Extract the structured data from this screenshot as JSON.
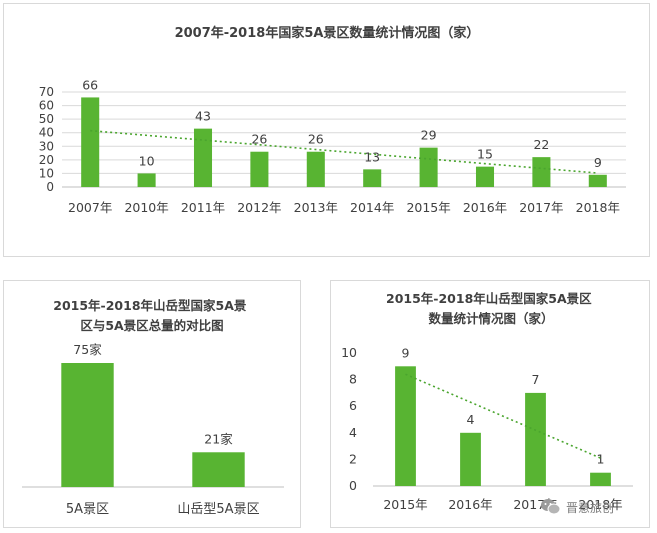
{
  "colors": {
    "bar": "#58b432",
    "trend": "#4aa52e",
    "axis": "#bfbfbf",
    "grid": "#d9d9d9",
    "text": "#404040"
  },
  "chart_data": [
    {
      "type": "bar",
      "title": "2007年-2018年国家5A景区数量统计情况图（家）",
      "categories": [
        "2007年",
        "2010年",
        "2011年",
        "2012年",
        "2013年",
        "2014年",
        "2015年",
        "2016年",
        "2017年",
        "2018年"
      ],
      "values": [
        66,
        10,
        43,
        26,
        26,
        13,
        29,
        15,
        22,
        9
      ],
      "ylim": [
        0,
        70
      ],
      "yticks": [
        0,
        10,
        20,
        30,
        40,
        50,
        60,
        70
      ],
      "grid": true,
      "trendline": "linear"
    },
    {
      "type": "bar",
      "title": "2015年-2018年山岳型国家5A景区与5A景区总量的对比图",
      "categories": [
        "5A景区",
        "山岳型5A景区"
      ],
      "values": [
        75,
        21
      ],
      "data_labels": [
        "75家",
        "21家"
      ],
      "grid": false
    },
    {
      "type": "bar",
      "title": "2015年-2018年山岳型国家5A景区数量统计情况图（家）",
      "categories": [
        "2015年",
        "2016年",
        "2017年",
        "2018年"
      ],
      "values": [
        9,
        4,
        7,
        1
      ],
      "ylim": [
        0,
        10
      ],
      "yticks": [
        0,
        2,
        4,
        6,
        8,
        10
      ],
      "grid": false,
      "trendline": "linear"
    }
  ],
  "watermark": {
    "text": "晋意旅创",
    "icon": "wechat-icon"
  }
}
